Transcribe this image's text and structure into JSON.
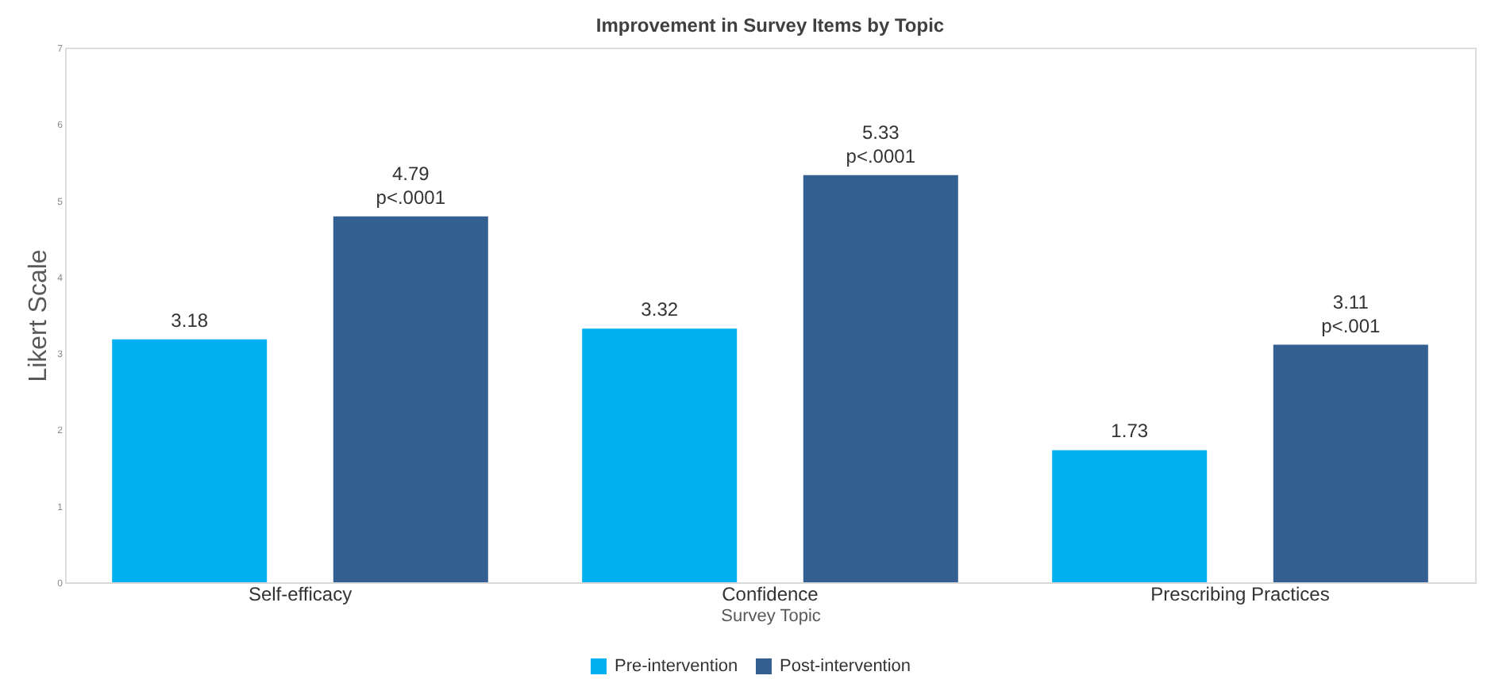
{
  "chart_data": {
    "type": "bar",
    "title": "Improvement in Survey Items by Topic",
    "xlabel": "Survey Topic",
    "ylabel": "Likert Scale",
    "categories": [
      "Self-efficacy",
      "Confidence",
      "Prescribing Practices"
    ],
    "series": [
      {
        "name": "Pre-intervention",
        "color": "#00b0f0",
        "values": [
          3.18,
          3.32,
          1.73
        ],
        "value_labels": [
          "3.18",
          "3.32",
          "1.73"
        ]
      },
      {
        "name": "Post-intervention",
        "color": "#335f91",
        "values": [
          4.79,
          5.33,
          3.11
        ],
        "value_labels": [
          "4.79\np<.0001",
          "5.33\np<.0001",
          "3.11\np<.001"
        ]
      }
    ],
    "ylim": [
      0,
      7
    ],
    "yticks": [
      0,
      1,
      2,
      3,
      4,
      5,
      6,
      7
    ],
    "grid": false,
    "legend": "bottom"
  }
}
